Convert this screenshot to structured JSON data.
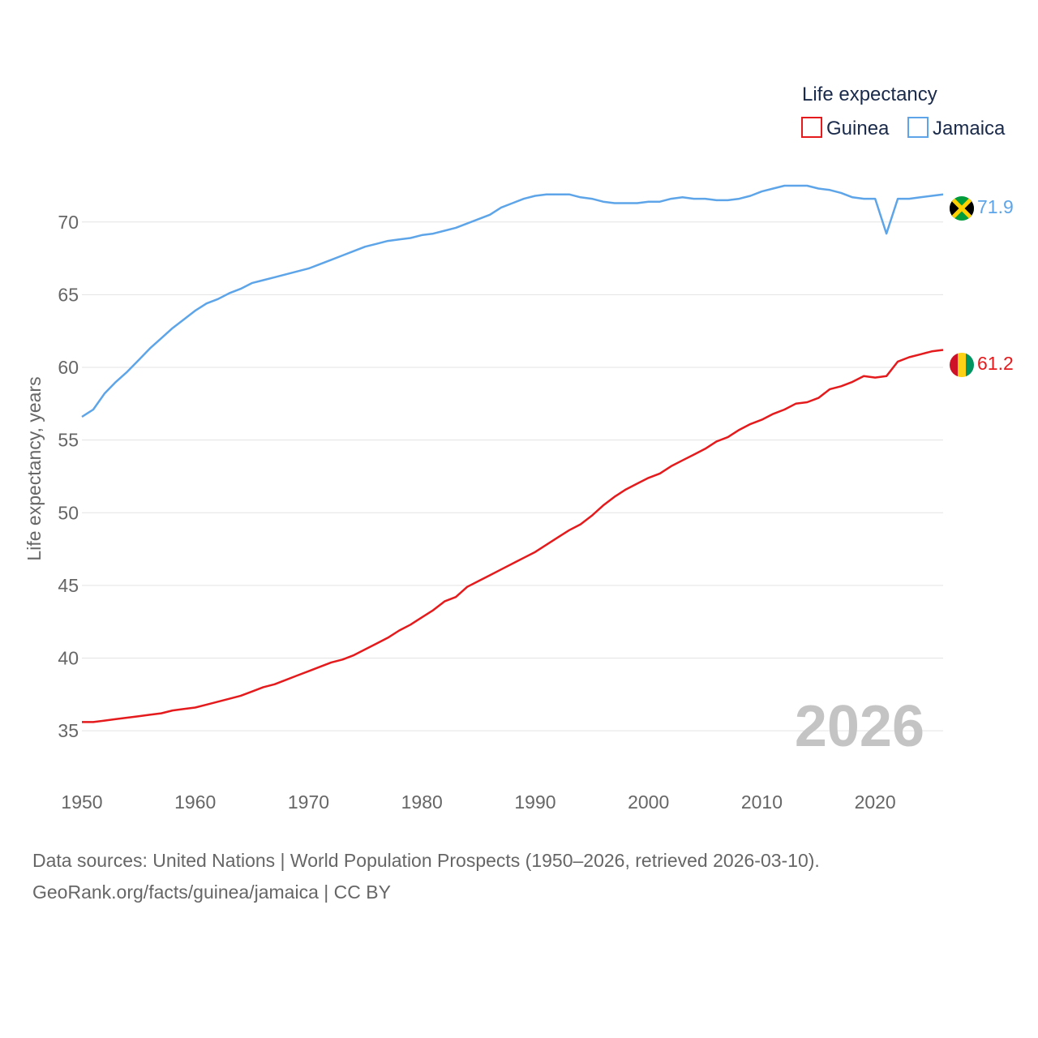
{
  "chart_data": {
    "type": "line",
    "title": "",
    "xlabel": "",
    "ylabel": "Life expectancy, years",
    "xlim": [
      1950,
      2026
    ],
    "ylim": [
      33,
      73
    ],
    "yticks": [
      35,
      40,
      45,
      50,
      55,
      60,
      65,
      70
    ],
    "xticks": [
      1950,
      1960,
      1970,
      1980,
      1990,
      2000,
      2010,
      2020
    ],
    "grid": true,
    "legend": {
      "title": "Life expectancy",
      "position": "top-right"
    },
    "current_year": "2026",
    "x": [
      1950,
      1951,
      1952,
      1953,
      1954,
      1955,
      1956,
      1957,
      1958,
      1959,
      1960,
      1961,
      1962,
      1963,
      1964,
      1965,
      1966,
      1967,
      1968,
      1969,
      1970,
      1971,
      1972,
      1973,
      1974,
      1975,
      1976,
      1977,
      1978,
      1979,
      1980,
      1981,
      1982,
      1983,
      1984,
      1985,
      1986,
      1987,
      1988,
      1989,
      1990,
      1991,
      1992,
      1993,
      1994,
      1995,
      1996,
      1997,
      1998,
      1999,
      2000,
      2001,
      2002,
      2003,
      2004,
      2005,
      2006,
      2007,
      2008,
      2009,
      2010,
      2011,
      2012,
      2013,
      2014,
      2015,
      2016,
      2017,
      2018,
      2019,
      2020,
      2021,
      2022,
      2023,
      2024,
      2025,
      2026
    ],
    "series": [
      {
        "name": "Guinea",
        "color": "#e41a1c",
        "end_label": "61.2",
        "values": [
          35.6,
          35.6,
          35.7,
          35.8,
          35.9,
          36.0,
          36.1,
          36.2,
          36.4,
          36.5,
          36.6,
          36.8,
          37.0,
          37.2,
          37.4,
          37.7,
          38.0,
          38.2,
          38.5,
          38.8,
          39.1,
          39.4,
          39.7,
          39.9,
          40.2,
          40.6,
          41.0,
          41.4,
          41.9,
          42.3,
          42.8,
          43.3,
          43.9,
          44.2,
          44.9,
          45.3,
          45.7,
          46.1,
          46.5,
          46.9,
          47.3,
          47.8,
          48.3,
          48.8,
          49.2,
          49.8,
          50.5,
          51.1,
          51.6,
          52.0,
          52.4,
          52.7,
          53.2,
          53.6,
          54.0,
          54.4,
          54.9,
          55.2,
          55.7,
          56.1,
          56.4,
          56.8,
          57.1,
          57.5,
          57.6,
          57.9,
          58.5,
          58.7,
          59.0,
          59.4,
          59.3,
          59.4,
          60.4,
          60.7,
          60.9,
          61.1,
          61.2
        ]
      },
      {
        "name": "Jamaica",
        "color": "#5da5e8",
        "end_label": "71.9",
        "values": [
          56.6,
          57.1,
          58.2,
          59.0,
          59.7,
          60.5,
          61.3,
          62.0,
          62.7,
          63.3,
          63.9,
          64.4,
          64.7,
          65.1,
          65.4,
          65.8,
          66.0,
          66.2,
          66.4,
          66.6,
          66.8,
          67.1,
          67.4,
          67.7,
          68.0,
          68.3,
          68.5,
          68.7,
          68.8,
          68.9,
          69.1,
          69.2,
          69.4,
          69.6,
          69.9,
          70.2,
          70.5,
          71.0,
          71.3,
          71.6,
          71.8,
          71.9,
          71.9,
          71.9,
          71.7,
          71.6,
          71.4,
          71.3,
          71.3,
          71.3,
          71.4,
          71.4,
          71.6,
          71.7,
          71.6,
          71.6,
          71.5,
          71.5,
          71.6,
          71.8,
          72.1,
          72.3,
          72.5,
          72.5,
          72.5,
          72.3,
          72.2,
          72.0,
          71.7,
          71.6,
          71.6,
          69.2,
          71.6,
          71.6,
          71.7,
          71.8,
          71.9
        ]
      }
    ]
  },
  "footer": {
    "line1": "Data sources: United Nations | World Population Prospects (1950–2026, retrieved 2026-03-10).",
    "line2": "GeoRank.org/facts/guinea/jamaica | CC BY"
  }
}
